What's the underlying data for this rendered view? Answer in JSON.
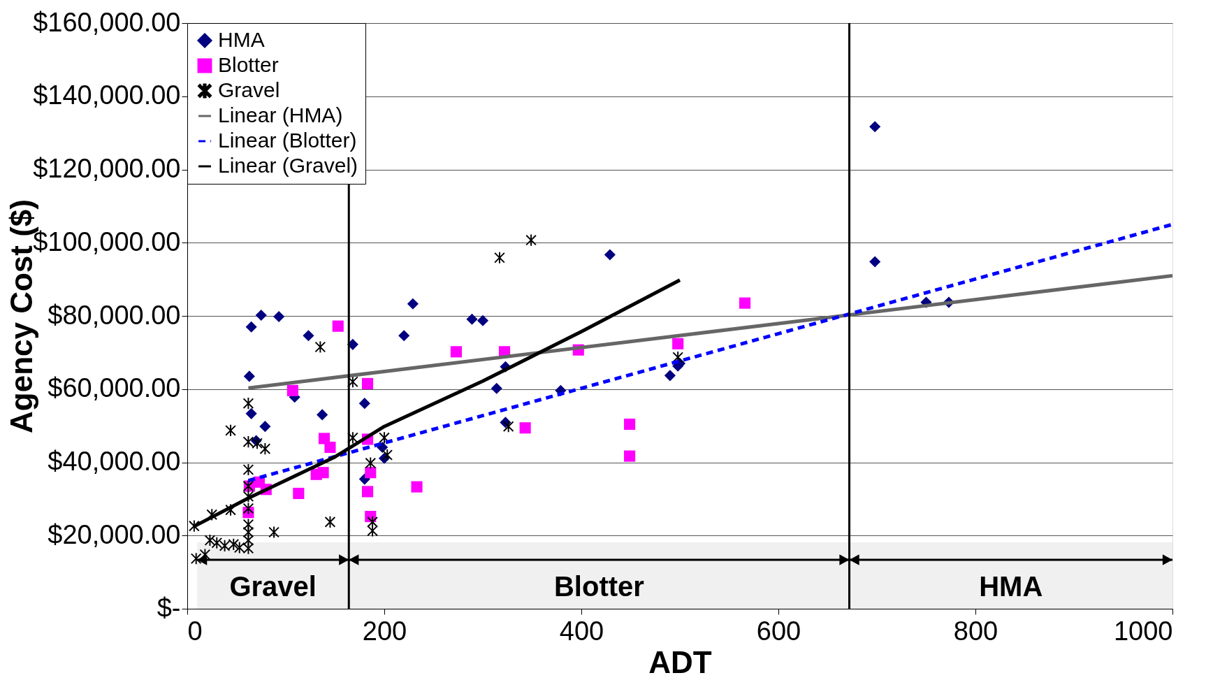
{
  "chart_data": {
    "type": "scatter",
    "xlabel": "ADT",
    "ylabel": "Agency Cost ($)",
    "xlim": [
      0,
      1000
    ],
    "xticks": [
      0,
      200,
      400,
      600,
      800,
      {
        "value": 1000,
        "label": "1000"
      }
    ],
    "ylim": [
      0,
      160000
    ],
    "yticks": [
      {
        "value": 0,
        "label": "$-"
      },
      {
        "value": 20000,
        "label": "$20,000.00"
      },
      {
        "value": 40000,
        "label": "$40,000.00"
      },
      {
        "value": 60000,
        "label": "$60,000.00"
      },
      {
        "value": 80000,
        "label": "$80,000.00"
      },
      {
        "value": 100000,
        "label": "$100,000.00"
      },
      {
        "value": 120000,
        "label": "$120,000.00"
      },
      {
        "value": 140000,
        "label": "$140,000.00"
      },
      {
        "value": 160000,
        "label": "$160,000.00"
      }
    ],
    "grid": "y",
    "legend": "top left",
    "series": [
      {
        "name": "HMA",
        "marker": "diamond",
        "color": "#000080",
        "x": [
          65,
          75,
          93,
          63,
          65,
          70,
          79,
          109,
          123,
          137,
          168,
          180,
          180,
          198,
          200,
          220,
          229,
          289,
          300,
          314,
          323,
          323,
          379,
          429,
          490,
          498,
          500,
          698,
          698,
          750,
          773
        ],
        "values": [
          77000,
          80200,
          79800,
          63500,
          53300,
          45900,
          49800,
          57800,
          74600,
          53000,
          72200,
          56100,
          35400,
          44100,
          41100,
          74600,
          83300,
          79100,
          78700,
          60200,
          66100,
          50900,
          59600,
          96700,
          63700,
          66300,
          67000,
          131700,
          94800,
          83700,
          83700
        ]
      },
      {
        "name": "Blotter",
        "marker": "square",
        "color": "#ff00ff",
        "x": [
          62,
          63,
          73,
          80,
          107,
          113,
          131,
          138,
          139,
          145,
          153,
          183,
          183,
          183,
          186,
          186,
          233,
          273,
          322,
          343,
          397,
          449,
          449,
          498,
          566
        ],
        "values": [
          26300,
          33500,
          34600,
          32600,
          59600,
          31500,
          36700,
          37200,
          46500,
          44100,
          77200,
          61500,
          46300,
          32000,
          37200,
          25200,
          33300,
          70200,
          70200,
          49400,
          70700,
          50400,
          41700,
          72400,
          83500
        ]
      },
      {
        "name": "Gravel",
        "marker": "cross",
        "color": "#000000",
        "x": [
          7,
          9,
          18,
          23,
          25,
          30,
          38,
          44,
          44,
          47,
          53,
          62,
          62,
          62,
          62,
          62,
          62,
          62,
          62,
          62,
          62,
          71,
          79,
          88,
          135,
          145,
          168,
          168,
          186,
          188,
          188,
          200,
          203,
          317,
          326,
          349,
          498
        ],
        "values": [
          22600,
          13700,
          14800,
          18700,
          25700,
          18000,
          17200,
          27000,
          48700,
          17600,
          16700,
          16500,
          18700,
          20900,
          23000,
          27400,
          30700,
          33500,
          38000,
          45600,
          56100,
          45200,
          43700,
          20900,
          71500,
          23700,
          62000,
          46700,
          39800,
          23700,
          21300,
          46700,
          42000,
          95900,
          49800,
          100700,
          68700
        ]
      },
      {
        "name": "Linear (HMA)",
        "type": "line",
        "line_style": "solid",
        "color": "#666666",
        "x": [
          62,
          1000
        ],
        "values": [
          60300,
          91000
        ]
      },
      {
        "name": "Linear (Blotter)",
        "type": "line",
        "line_style": "dashed",
        "color": "#0000ff",
        "x": [
          62,
          1000
        ],
        "values": [
          35000,
          105000
        ]
      },
      {
        "name": "Linear (Gravel)",
        "type": "line",
        "line_style": "solid",
        "color": "#000000",
        "x": [
          7,
          62,
          150,
          200,
          300,
          400,
          500
        ],
        "values": [
          22500,
          30200,
          41500,
          49800,
          62200,
          75700,
          89800
        ]
      }
    ],
    "ref_lines": [
      {
        "axis": "x",
        "value": 164,
        "color": "#000000"
      },
      {
        "axis": "x",
        "value": 672,
        "color": "#000000"
      }
    ],
    "bands": [
      {
        "axis": "x",
        "from": 10,
        "to": 164,
        "label": "Gravel",
        "color": "#000000"
      },
      {
        "axis": "x",
        "from": 164,
        "to": 672,
        "label": "Blotter",
        "color": "#000000"
      },
      {
        "axis": "x",
        "from": 672,
        "to": 1000,
        "label": "HMA",
        "color": "#000000"
      }
    ]
  }
}
